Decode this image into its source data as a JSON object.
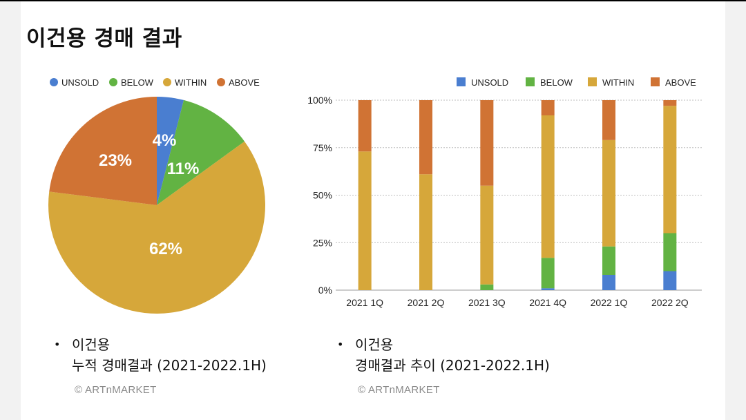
{
  "page_title": "이건용 경매 결과",
  "chart_data": [
    {
      "type": "pie",
      "title": "",
      "legend": [
        "UNSOLD",
        "BELOW",
        "WITHIN",
        "ABOVE"
      ],
      "legend_position": "top",
      "labels": [
        "UNSOLD",
        "BELOW",
        "WITHIN",
        "ABOVE"
      ],
      "values": [
        4,
        11,
        62,
        23
      ],
      "value_labels": [
        "4%",
        "11%",
        "62%",
        "23%"
      ],
      "colors": [
        "#4a7ed0",
        "#62b343",
        "#d6a73a",
        "#d07334"
      ]
    },
    {
      "type": "bar",
      "stacked": true,
      "percent": true,
      "categories": [
        "2021 1Q",
        "2021 2Q",
        "2021 3Q",
        "2021 4Q",
        "2022 1Q",
        "2022 2Q"
      ],
      "series": [
        {
          "name": "UNSOLD",
          "color": "#4a7ed0",
          "values": [
            0,
            0,
            0,
            1,
            8,
            10
          ]
        },
        {
          "name": "BELOW",
          "color": "#62b343",
          "values": [
            0,
            0,
            3,
            16,
            15,
            20
          ]
        },
        {
          "name": "WITHIN",
          "color": "#d6a73a",
          "values": [
            73,
            61,
            52,
            75,
            56,
            67
          ]
        },
        {
          "name": "ABOVE",
          "color": "#d07334",
          "values": [
            27,
            39,
            45,
            8,
            21,
            3
          ]
        }
      ],
      "y_ticks": [
        "100%",
        "75%",
        "50%",
        "25%",
        "0%"
      ],
      "ylim": [
        0,
        100
      ],
      "legend": [
        "UNSOLD",
        "BELOW",
        "WITHIN",
        "ABOVE"
      ],
      "legend_position": "top-right",
      "xlabel": "",
      "ylabel": ""
    }
  ],
  "captions": {
    "left": {
      "line1": "이건용",
      "line2": "누적 경매결과 (2021-2022.1H)",
      "credit": "© ARTnMARKET"
    },
    "right": {
      "line1": "이건용",
      "line2": "경매결과 추이 (2021-2022.1H)",
      "credit": "© ARTnMARKET"
    }
  }
}
